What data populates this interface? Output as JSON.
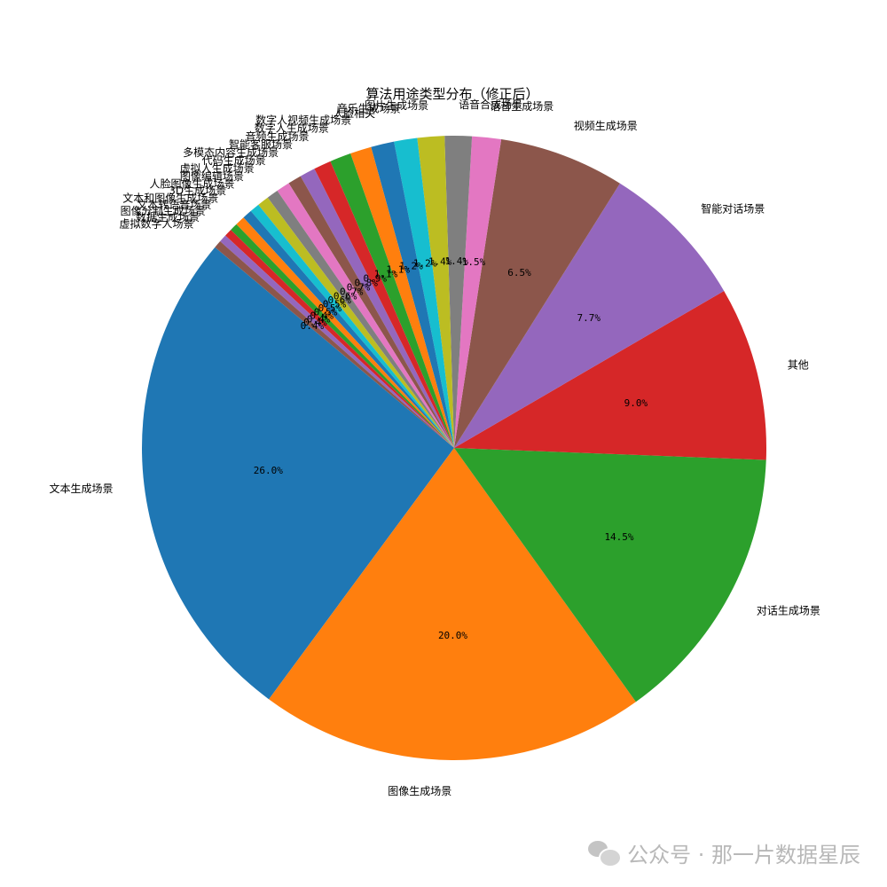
{
  "chart_data": {
    "type": "pie",
    "title": "算法用途类型分布（修正后）",
    "startangle_deg": 140,
    "direction": "counterclockwise",
    "colors": [
      "#1f77b4",
      "#ff7f0e",
      "#2ca02c",
      "#d62728",
      "#9467bd",
      "#8c564b",
      "#e377c2",
      "#7f7f7f",
      "#bcbd22",
      "#17becf"
    ],
    "slices": [
      {
        "label": "文本生成场景",
        "value": 26.0,
        "pct": "26.0%"
      },
      {
        "label": "图像生成场景",
        "value": 20.0,
        "pct": "20.0%"
      },
      {
        "label": "对话生成场景",
        "value": 14.5,
        "pct": "14.5%"
      },
      {
        "label": "其他",
        "value": 9.0,
        "pct": "9.0%"
      },
      {
        "label": "智能对话场景",
        "value": 7.7,
        "pct": "7.7%"
      },
      {
        "label": "视频生成场景",
        "value": 6.5,
        "pct": "6.5%"
      },
      {
        "label": "语音生成场景",
        "value": 1.5,
        "pct": "1.5%"
      },
      {
        "label": "语音合成场景",
        "value": 1.4,
        "pct": "1.4%"
      },
      {
        "label": "图片生成场景",
        "value": 1.4,
        "pct": "1.4%"
      },
      {
        "label": "音乐生成场景",
        "value": 1.2,
        "pct": "1.2%"
      },
      {
        "label": "人脸相关",
        "value": 1.2,
        "pct": "1.2%"
      },
      {
        "label": "数字人视频生成场景",
        "value": 1.1,
        "pct": "1.1%"
      },
      {
        "label": "数字人生成场景",
        "value": 1.1,
        "pct": "1.1%"
      },
      {
        "label": "音频生成场景",
        "value": 0.9,
        "pct": "0.9%"
      },
      {
        "label": "智能客服场景",
        "value": 0.8,
        "pct": "0.8%"
      },
      {
        "label": "多模态内容生成场景",
        "value": 0.7,
        "pct": "0.7%"
      },
      {
        "label": "代码生成场景",
        "value": 0.7,
        "pct": "0.7%"
      },
      {
        "label": "虚拟人生成场景",
        "value": 0.6,
        "pct": "0.6%"
      },
      {
        "label": "图像编辑场景",
        "value": 0.6,
        "pct": "0.6%"
      },
      {
        "label": "人脸图像生成场景",
        "value": 0.5,
        "pct": "0.5%"
      },
      {
        "label": "3D生成场景",
        "value": 0.5,
        "pct": "0.5%"
      },
      {
        "label": "文本和图像生成场景",
        "value": 0.5,
        "pct": "0.5%"
      },
      {
        "label": "文本转语音场景",
        "value": 0.4,
        "pct": "0.4%"
      },
      {
        "label": "图像分割生成场景",
        "value": 0.4,
        "pct": "0.4%"
      },
      {
        "label": "数据生成场景",
        "value": 0.4,
        "pct": "0.4%"
      },
      {
        "label": "虚拟数字人场景",
        "value": 0.4,
        "pct": "0.4%"
      }
    ]
  },
  "watermark": {
    "icon": "wechat-icon",
    "text": "公众号 · 那一片数据星辰"
  }
}
